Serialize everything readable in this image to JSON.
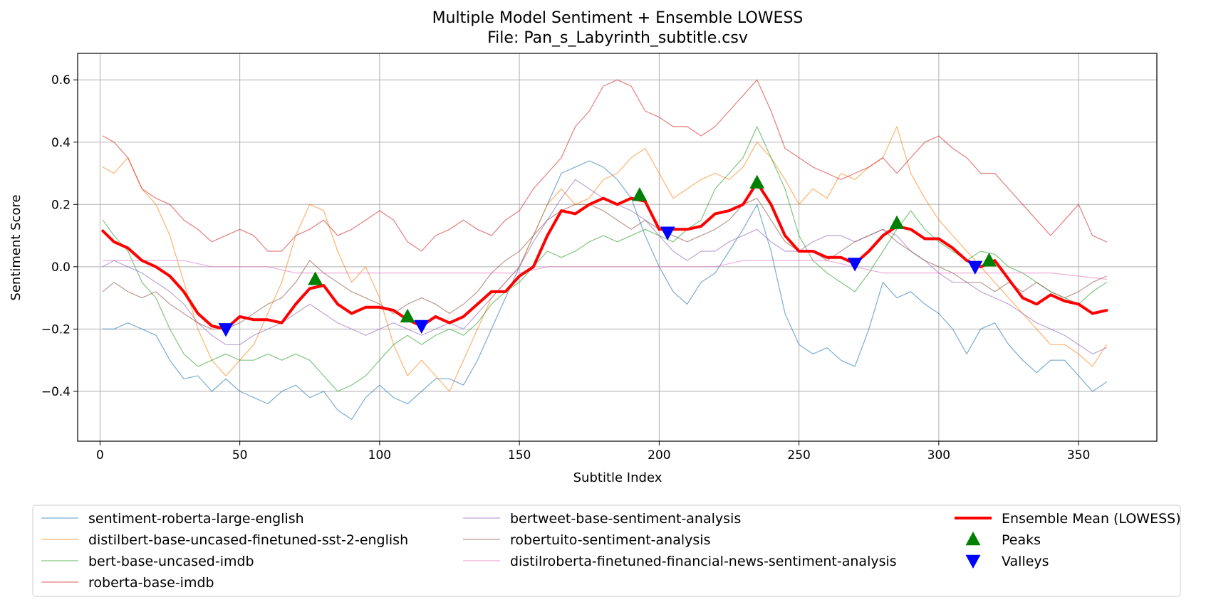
{
  "chart_data": {
    "type": "line",
    "title": "Multiple Model Sentiment + Ensemble LOWESS",
    "subtitle": "File: Pan_s_Labyrinth_subtitle.csv",
    "xlabel": "Subtitle Index",
    "ylabel": "Sentiment Score",
    "xlim": [
      -8,
      378
    ],
    "ylim": [
      -0.56,
      0.685
    ],
    "xticks": [
      0,
      50,
      100,
      150,
      200,
      250,
      300,
      350
    ],
    "yticks": [
      -0.4,
      -0.2,
      0.0,
      0.2,
      0.4,
      0.6
    ],
    "ytick_labels": [
      "−0.4",
      "−0.2",
      "0.0",
      "0.2",
      "0.4",
      "0.6"
    ],
    "grid": true,
    "legend_position": "bottom",
    "series": [
      {
        "name": "sentiment-roberta-large-english",
        "color": "#1f77b4",
        "x": [
          1,
          5,
          10,
          15,
          20,
          25,
          30,
          35,
          40,
          45,
          50,
          55,
          60,
          65,
          70,
          75,
          80,
          85,
          90,
          95,
          100,
          105,
          110,
          115,
          120,
          125,
          130,
          135,
          140,
          145,
          150,
          155,
          160,
          165,
          170,
          175,
          180,
          185,
          190,
          195,
          200,
          205,
          210,
          215,
          220,
          225,
          230,
          235,
          240,
          245,
          250,
          255,
          260,
          265,
          270,
          275,
          280,
          285,
          290,
          295,
          300,
          305,
          310,
          315,
          320,
          325,
          330,
          335,
          340,
          345,
          350,
          355,
          360
        ],
        "y": [
          -0.2,
          -0.2,
          -0.18,
          -0.2,
          -0.22,
          -0.3,
          -0.36,
          -0.35,
          -0.4,
          -0.36,
          -0.4,
          -0.42,
          -0.44,
          -0.4,
          -0.38,
          -0.42,
          -0.4,
          -0.46,
          -0.49,
          -0.42,
          -0.38,
          -0.42,
          -0.44,
          -0.4,
          -0.36,
          -0.36,
          -0.38,
          -0.3,
          -0.2,
          -0.1,
          0.0,
          0.1,
          0.2,
          0.3,
          0.32,
          0.34,
          0.32,
          0.28,
          0.22,
          0.1,
          0.0,
          -0.08,
          -0.12,
          -0.05,
          -0.02,
          0.05,
          0.12,
          0.2,
          0.05,
          -0.15,
          -0.25,
          -0.28,
          -0.26,
          -0.3,
          -0.32,
          -0.2,
          -0.05,
          -0.1,
          -0.08,
          -0.12,
          -0.15,
          -0.2,
          -0.28,
          -0.2,
          -0.18,
          -0.25,
          -0.3,
          -0.34,
          -0.3,
          -0.3,
          -0.35,
          -0.4,
          -0.37
        ]
      },
      {
        "name": "distilbert-base-uncased-finetuned-sst-2-english",
        "color": "#ff7f0e",
        "x": [
          1,
          5,
          10,
          15,
          20,
          25,
          30,
          35,
          40,
          45,
          50,
          55,
          60,
          65,
          70,
          75,
          80,
          85,
          90,
          95,
          100,
          105,
          110,
          115,
          120,
          125,
          130,
          135,
          140,
          145,
          150,
          155,
          160,
          165,
          170,
          175,
          180,
          185,
          190,
          195,
          200,
          205,
          210,
          215,
          220,
          225,
          230,
          235,
          240,
          245,
          250,
          255,
          260,
          265,
          270,
          275,
          280,
          285,
          290,
          295,
          300,
          305,
          310,
          315,
          320,
          325,
          330,
          335,
          340,
          345,
          350,
          355,
          360
        ],
        "y": [
          0.32,
          0.3,
          0.35,
          0.25,
          0.2,
          0.1,
          -0.05,
          -0.2,
          -0.3,
          -0.35,
          -0.3,
          -0.25,
          -0.15,
          -0.05,
          0.1,
          0.2,
          0.18,
          0.05,
          -0.05,
          0.0,
          -0.1,
          -0.25,
          -0.35,
          -0.3,
          -0.35,
          -0.4,
          -0.3,
          -0.2,
          -0.1,
          -0.05,
          0.0,
          0.1,
          0.2,
          0.25,
          0.2,
          0.22,
          0.28,
          0.3,
          0.35,
          0.38,
          0.3,
          0.22,
          0.25,
          0.28,
          0.3,
          0.28,
          0.32,
          0.4,
          0.35,
          0.28,
          0.2,
          0.25,
          0.22,
          0.3,
          0.28,
          0.32,
          0.35,
          0.45,
          0.3,
          0.22,
          0.15,
          0.1,
          0.05,
          0.0,
          -0.05,
          -0.1,
          -0.15,
          -0.2,
          -0.25,
          -0.25,
          -0.28,
          -0.32,
          -0.25
        ]
      },
      {
        "name": "bert-base-uncased-imdb",
        "color": "#2ca02c",
        "x": [
          1,
          5,
          10,
          15,
          20,
          25,
          30,
          35,
          40,
          45,
          50,
          55,
          60,
          65,
          70,
          75,
          80,
          85,
          90,
          95,
          100,
          105,
          110,
          115,
          120,
          125,
          130,
          135,
          140,
          145,
          150,
          155,
          160,
          165,
          170,
          175,
          180,
          185,
          190,
          195,
          200,
          205,
          210,
          215,
          220,
          225,
          230,
          235,
          240,
          245,
          250,
          255,
          260,
          265,
          270,
          275,
          280,
          285,
          290,
          295,
          300,
          305,
          310,
          315,
          320,
          325,
          330,
          335,
          340,
          345,
          350,
          355,
          360
        ],
        "y": [
          0.15,
          0.1,
          0.05,
          -0.05,
          -0.1,
          -0.2,
          -0.28,
          -0.32,
          -0.3,
          -0.28,
          -0.3,
          -0.3,
          -0.28,
          -0.3,
          -0.28,
          -0.3,
          -0.35,
          -0.4,
          -0.38,
          -0.35,
          -0.3,
          -0.25,
          -0.22,
          -0.25,
          -0.22,
          -0.2,
          -0.22,
          -0.18,
          -0.12,
          -0.08,
          -0.05,
          0.0,
          0.05,
          0.03,
          0.05,
          0.08,
          0.1,
          0.08,
          0.1,
          0.12,
          0.1,
          0.08,
          0.12,
          0.15,
          0.25,
          0.3,
          0.35,
          0.45,
          0.35,
          0.25,
          0.1,
          0.02,
          -0.02,
          -0.05,
          -0.08,
          -0.02,
          0.05,
          0.12,
          0.18,
          0.12,
          0.08,
          0.05,
          0.02,
          0.05,
          0.04,
          0.0,
          -0.02,
          -0.05,
          -0.08,
          -0.1,
          -0.12,
          -0.08,
          -0.05
        ]
      },
      {
        "name": "roberta-base-imdb",
        "color": "#d62728",
        "x": [
          1,
          5,
          10,
          15,
          20,
          25,
          30,
          35,
          40,
          45,
          50,
          55,
          60,
          65,
          70,
          75,
          80,
          85,
          90,
          95,
          100,
          105,
          110,
          115,
          120,
          125,
          130,
          135,
          140,
          145,
          150,
          155,
          160,
          165,
          170,
          175,
          180,
          185,
          190,
          195,
          200,
          205,
          210,
          215,
          220,
          225,
          230,
          235,
          240,
          245,
          250,
          255,
          260,
          265,
          270,
          275,
          280,
          285,
          290,
          295,
          300,
          305,
          310,
          315,
          320,
          325,
          330,
          335,
          340,
          345,
          350,
          355,
          360
        ],
        "y": [
          0.42,
          0.4,
          0.35,
          0.25,
          0.22,
          0.2,
          0.15,
          0.12,
          0.08,
          0.1,
          0.12,
          0.1,
          0.05,
          0.05,
          0.1,
          0.12,
          0.15,
          0.1,
          0.12,
          0.15,
          0.18,
          0.15,
          0.08,
          0.05,
          0.1,
          0.12,
          0.15,
          0.12,
          0.1,
          0.15,
          0.18,
          0.25,
          0.3,
          0.35,
          0.45,
          0.5,
          0.58,
          0.6,
          0.58,
          0.5,
          0.48,
          0.45,
          0.45,
          0.42,
          0.45,
          0.5,
          0.55,
          0.6,
          0.5,
          0.38,
          0.35,
          0.32,
          0.3,
          0.28,
          0.3,
          0.32,
          0.35,
          0.3,
          0.35,
          0.4,
          0.42,
          0.38,
          0.35,
          0.3,
          0.3,
          0.25,
          0.2,
          0.15,
          0.1,
          0.15,
          0.2,
          0.1,
          0.08
        ]
      },
      {
        "name": "bertweet-base-sentiment-analysis",
        "color": "#9467bd",
        "x": [
          1,
          5,
          10,
          15,
          20,
          25,
          30,
          35,
          40,
          45,
          50,
          55,
          60,
          65,
          70,
          75,
          80,
          85,
          90,
          95,
          100,
          105,
          110,
          115,
          120,
          125,
          130,
          135,
          140,
          145,
          150,
          155,
          160,
          165,
          170,
          175,
          180,
          185,
          190,
          195,
          200,
          205,
          210,
          215,
          220,
          225,
          230,
          235,
          240,
          245,
          250,
          255,
          260,
          265,
          270,
          275,
          280,
          285,
          290,
          295,
          300,
          305,
          310,
          315,
          320,
          325,
          330,
          335,
          340,
          345,
          350,
          355,
          360
        ],
        "y": [
          0.0,
          0.02,
          0.0,
          -0.02,
          -0.05,
          -0.08,
          -0.12,
          -0.18,
          -0.22,
          -0.25,
          -0.25,
          -0.22,
          -0.2,
          -0.18,
          -0.15,
          -0.12,
          -0.15,
          -0.18,
          -0.2,
          -0.22,
          -0.2,
          -0.18,
          -0.2,
          -0.22,
          -0.2,
          -0.18,
          -0.2,
          -0.15,
          -0.1,
          -0.05,
          0.0,
          0.08,
          0.15,
          0.22,
          0.28,
          0.25,
          0.22,
          0.2,
          0.18,
          0.15,
          0.1,
          0.05,
          0.02,
          0.05,
          0.05,
          0.08,
          0.1,
          0.12,
          0.08,
          0.05,
          0.05,
          0.08,
          0.1,
          0.1,
          0.08,
          0.1,
          0.12,
          0.1,
          0.05,
          0.02,
          -0.02,
          -0.05,
          -0.05,
          -0.08,
          -0.1,
          -0.12,
          -0.15,
          -0.18,
          -0.2,
          -0.22,
          -0.25,
          -0.28,
          -0.26
        ]
      },
      {
        "name": "robertuito-sentiment-analysis",
        "color": "#8c564b",
        "x": [
          1,
          5,
          10,
          15,
          20,
          25,
          30,
          35,
          40,
          45,
          50,
          55,
          60,
          65,
          70,
          75,
          80,
          85,
          90,
          95,
          100,
          105,
          110,
          115,
          120,
          125,
          130,
          135,
          140,
          145,
          150,
          155,
          160,
          165,
          170,
          175,
          180,
          185,
          190,
          195,
          200,
          205,
          210,
          215,
          220,
          225,
          230,
          235,
          240,
          245,
          250,
          255,
          260,
          265,
          270,
          275,
          280,
          285,
          290,
          295,
          300,
          305,
          310,
          315,
          320,
          325,
          330,
          335,
          340,
          345,
          350,
          355,
          360
        ],
        "y": [
          -0.08,
          -0.05,
          -0.08,
          -0.1,
          -0.08,
          -0.12,
          -0.15,
          -0.18,
          -0.2,
          -0.2,
          -0.18,
          -0.15,
          -0.12,
          -0.1,
          -0.05,
          0.02,
          -0.02,
          -0.05,
          -0.08,
          -0.1,
          -0.12,
          -0.15,
          -0.12,
          -0.1,
          -0.12,
          -0.15,
          -0.12,
          -0.08,
          -0.02,
          0.02,
          0.05,
          0.1,
          0.15,
          0.18,
          0.2,
          0.2,
          0.18,
          0.15,
          0.12,
          0.15,
          0.12,
          0.1,
          0.08,
          0.1,
          0.12,
          0.15,
          0.2,
          0.22,
          0.15,
          0.08,
          0.05,
          0.05,
          0.02,
          0.05,
          0.08,
          0.1,
          0.12,
          0.08,
          0.05,
          0.02,
          0.0,
          -0.02,
          -0.05,
          -0.05,
          -0.08,
          -0.05,
          -0.08,
          -0.05,
          -0.08,
          -0.1,
          -0.08,
          -0.05,
          -0.03
        ]
      },
      {
        "name": "distilroberta-finetuned-financial-news-sentiment-analysis",
        "color": "#e377c2",
        "x": [
          1,
          10,
          20,
          25,
          30,
          40,
          45,
          60,
          70,
          80,
          90,
          100,
          110,
          120,
          130,
          140,
          150,
          160,
          170,
          180,
          190,
          200,
          210,
          220,
          230,
          240,
          250,
          260,
          270,
          280,
          290,
          300,
          310,
          320,
          330,
          340,
          350,
          360
        ],
        "y": [
          0.02,
          0.02,
          0.02,
          0.02,
          0.02,
          0.0,
          0.0,
          0.0,
          -0.02,
          -0.02,
          -0.02,
          -0.02,
          -0.02,
          -0.02,
          -0.02,
          -0.02,
          -0.02,
          0.0,
          0.0,
          0.0,
          0.0,
          0.0,
          0.0,
          0.0,
          0.02,
          0.02,
          0.02,
          0.02,
          0.0,
          -0.02,
          -0.02,
          -0.02,
          -0.02,
          -0.02,
          -0.02,
          -0.02,
          -0.03,
          -0.04
        ]
      },
      {
        "name": "Ensemble Mean (LOWESS)",
        "color": "#ff0000",
        "x": [
          1,
          5,
          10,
          15,
          20,
          25,
          30,
          35,
          40,
          45,
          50,
          55,
          60,
          65,
          70,
          75,
          80,
          85,
          90,
          95,
          100,
          105,
          110,
          115,
          120,
          125,
          130,
          135,
          140,
          145,
          150,
          155,
          160,
          165,
          170,
          175,
          180,
          185,
          190,
          195,
          200,
          205,
          210,
          215,
          220,
          225,
          230,
          235,
          240,
          245,
          250,
          255,
          260,
          265,
          270,
          275,
          280,
          285,
          290,
          295,
          300,
          305,
          310,
          315,
          320,
          325,
          330,
          335,
          340,
          345,
          350,
          355,
          360
        ],
        "y": [
          0.115,
          0.08,
          0.06,
          0.02,
          0.0,
          -0.03,
          -0.08,
          -0.15,
          -0.19,
          -0.2,
          -0.16,
          -0.17,
          -0.17,
          -0.18,
          -0.12,
          -0.07,
          -0.06,
          -0.12,
          -0.15,
          -0.13,
          -0.13,
          -0.14,
          -0.17,
          -0.19,
          -0.16,
          -0.18,
          -0.16,
          -0.12,
          -0.08,
          -0.08,
          -0.03,
          0.0,
          0.1,
          0.18,
          0.17,
          0.2,
          0.22,
          0.2,
          0.22,
          0.21,
          0.12,
          0.12,
          0.12,
          0.13,
          0.17,
          0.18,
          0.2,
          0.27,
          0.2,
          0.1,
          0.05,
          0.05,
          0.03,
          0.03,
          0.01,
          0.05,
          0.1,
          0.13,
          0.12,
          0.09,
          0.09,
          0.06,
          0.02,
          0.0,
          0.02,
          -0.04,
          -0.1,
          -0.12,
          -0.09,
          -0.11,
          -0.12,
          -0.15,
          -0.14
        ]
      }
    ],
    "peaks": {
      "name": "Peaks",
      "color": "#008000",
      "x": [
        77,
        110,
        193,
        235,
        285,
        318
      ],
      "y": [
        -0.04,
        -0.16,
        0.23,
        0.27,
        0.14,
        0.02
      ]
    },
    "valleys": {
      "name": "Valleys",
      "color": "#0000ff",
      "x": [
        45,
        115,
        203,
        270,
        313
      ],
      "y": [
        -0.2,
        -0.19,
        0.11,
        0.01,
        0.0
      ]
    },
    "legend": {
      "columns": [
        [
          "sentiment-roberta-large-english",
          "distilbert-base-uncased-finetuned-sst-2-english",
          "bert-base-uncased-imdb",
          "roberta-base-imdb"
        ],
        [
          "bertweet-base-sentiment-analysis",
          "robertuito-sentiment-analysis",
          "distilroberta-finetuned-financial-news-sentiment-analysis"
        ],
        [
          "Ensemble Mean (LOWESS)",
          "Peaks",
          "Valleys"
        ]
      ]
    }
  }
}
